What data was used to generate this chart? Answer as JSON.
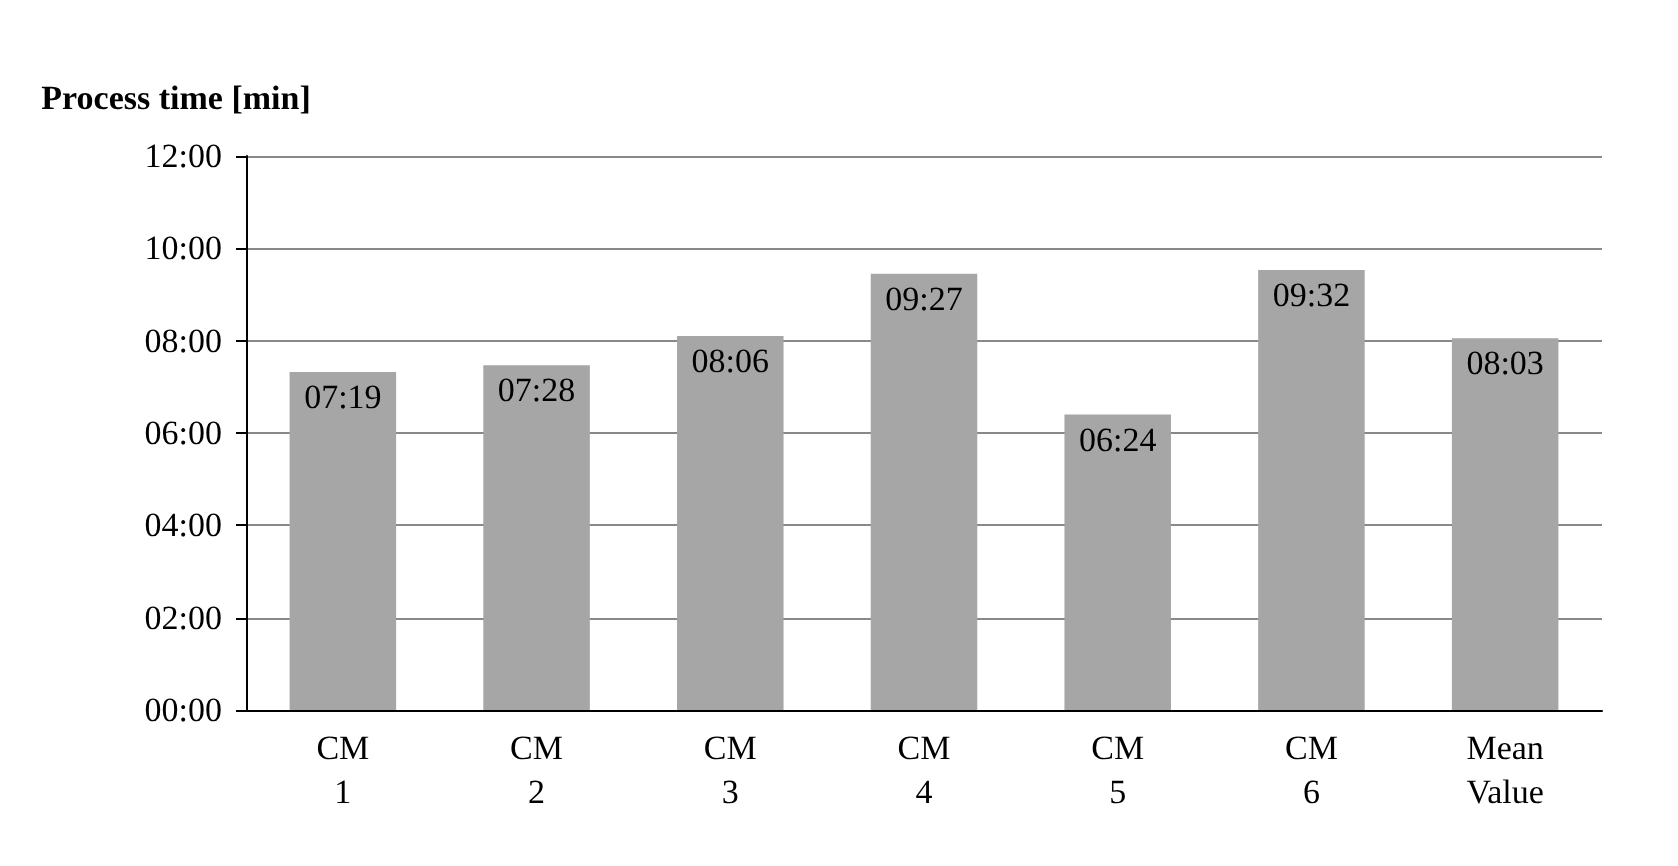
{
  "chart_data": {
    "type": "bar",
    "ylabel": "Process time [min]",
    "categories": [
      "CM 1",
      "CM 2",
      "CM 3",
      "CM 4",
      "CM 5",
      "CM 6",
      "Mean Value"
    ],
    "values": [
      7.32,
      7.47,
      8.1,
      9.45,
      6.4,
      9.53,
      8.05
    ],
    "value_labels": [
      "07:19",
      "07:28",
      "08:06",
      "09:27",
      "06:24",
      "09:32",
      "08:03"
    ],
    "color": "#a6a6a6",
    "ylim": [
      0,
      12
    ],
    "yticks": [
      {
        "value": 0,
        "label": "00:00"
      },
      {
        "value": 2,
        "label": "02:00"
      },
      {
        "value": 4,
        "label": "04:00"
      },
      {
        "value": 6,
        "label": "06:00"
      },
      {
        "value": 8,
        "label": "08:00"
      },
      {
        "value": 10,
        "label": "10:00"
      },
      {
        "value": 12,
        "label": "12:00"
      }
    ],
    "grid": "y"
  }
}
